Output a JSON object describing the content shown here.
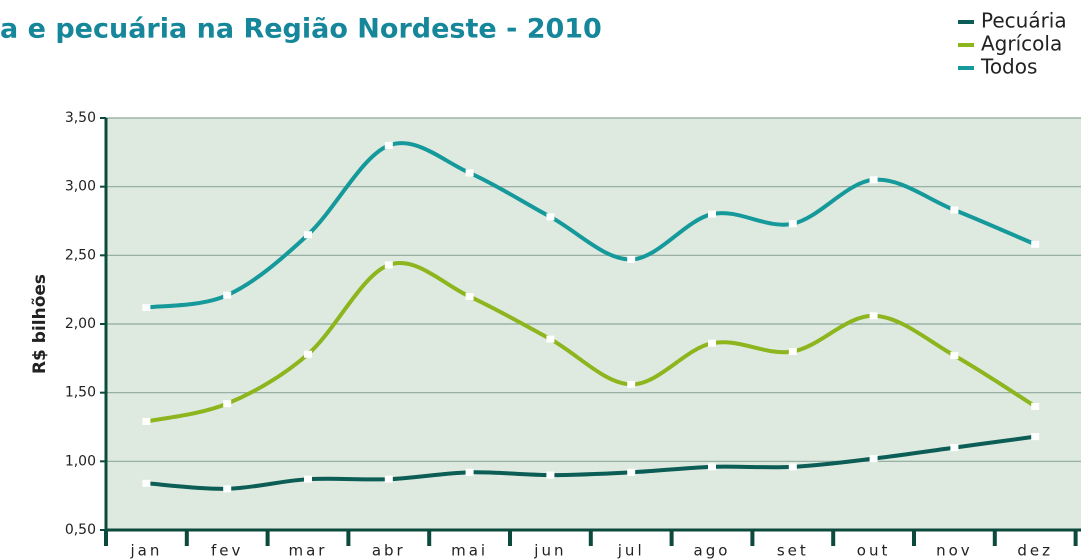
{
  "chart_data": {
    "type": "line",
    "title": "a e pecuária na Região Nordeste - 2010",
    "y_label": "R$ bilhões",
    "categories": [
      "jan",
      "fev",
      "mar",
      "abr",
      "mai",
      "jun",
      "jul",
      "ago",
      "set",
      "out",
      "nov",
      "dez"
    ],
    "series": [
      {
        "name": "Pecuária",
        "color": "#0b5d55",
        "values": [
          0.84,
          0.8,
          0.87,
          0.87,
          0.92,
          0.9,
          0.92,
          0.96,
          0.96,
          1.02,
          1.1,
          1.18
        ]
      },
      {
        "name": "Agrícola",
        "color": "#8cb51e",
        "values": [
          1.29,
          1.42,
          1.78,
          2.43,
          2.2,
          1.89,
          1.56,
          1.86,
          1.8,
          2.06,
          1.77,
          1.4
        ]
      },
      {
        "name": "Todos",
        "color": "#15999b",
        "values": [
          2.12,
          2.21,
          2.65,
          3.3,
          3.1,
          2.78,
          2.47,
          2.8,
          2.73,
          3.05,
          2.83,
          2.58
        ]
      }
    ],
    "ylim": [
      0.5,
      3.5
    ],
    "yticks": [
      {
        "value": 0.5,
        "label": "0,50"
      },
      {
        "value": 1.0,
        "label": "1,00"
      },
      {
        "value": 1.5,
        "label": "1,50"
      },
      {
        "value": 2.0,
        "label": "2,00"
      },
      {
        "value": 2.5,
        "label": "2,50"
      },
      {
        "value": 3.0,
        "label": "3,00"
      },
      {
        "value": 3.5,
        "label": "3,50"
      }
    ],
    "grid": true
  }
}
